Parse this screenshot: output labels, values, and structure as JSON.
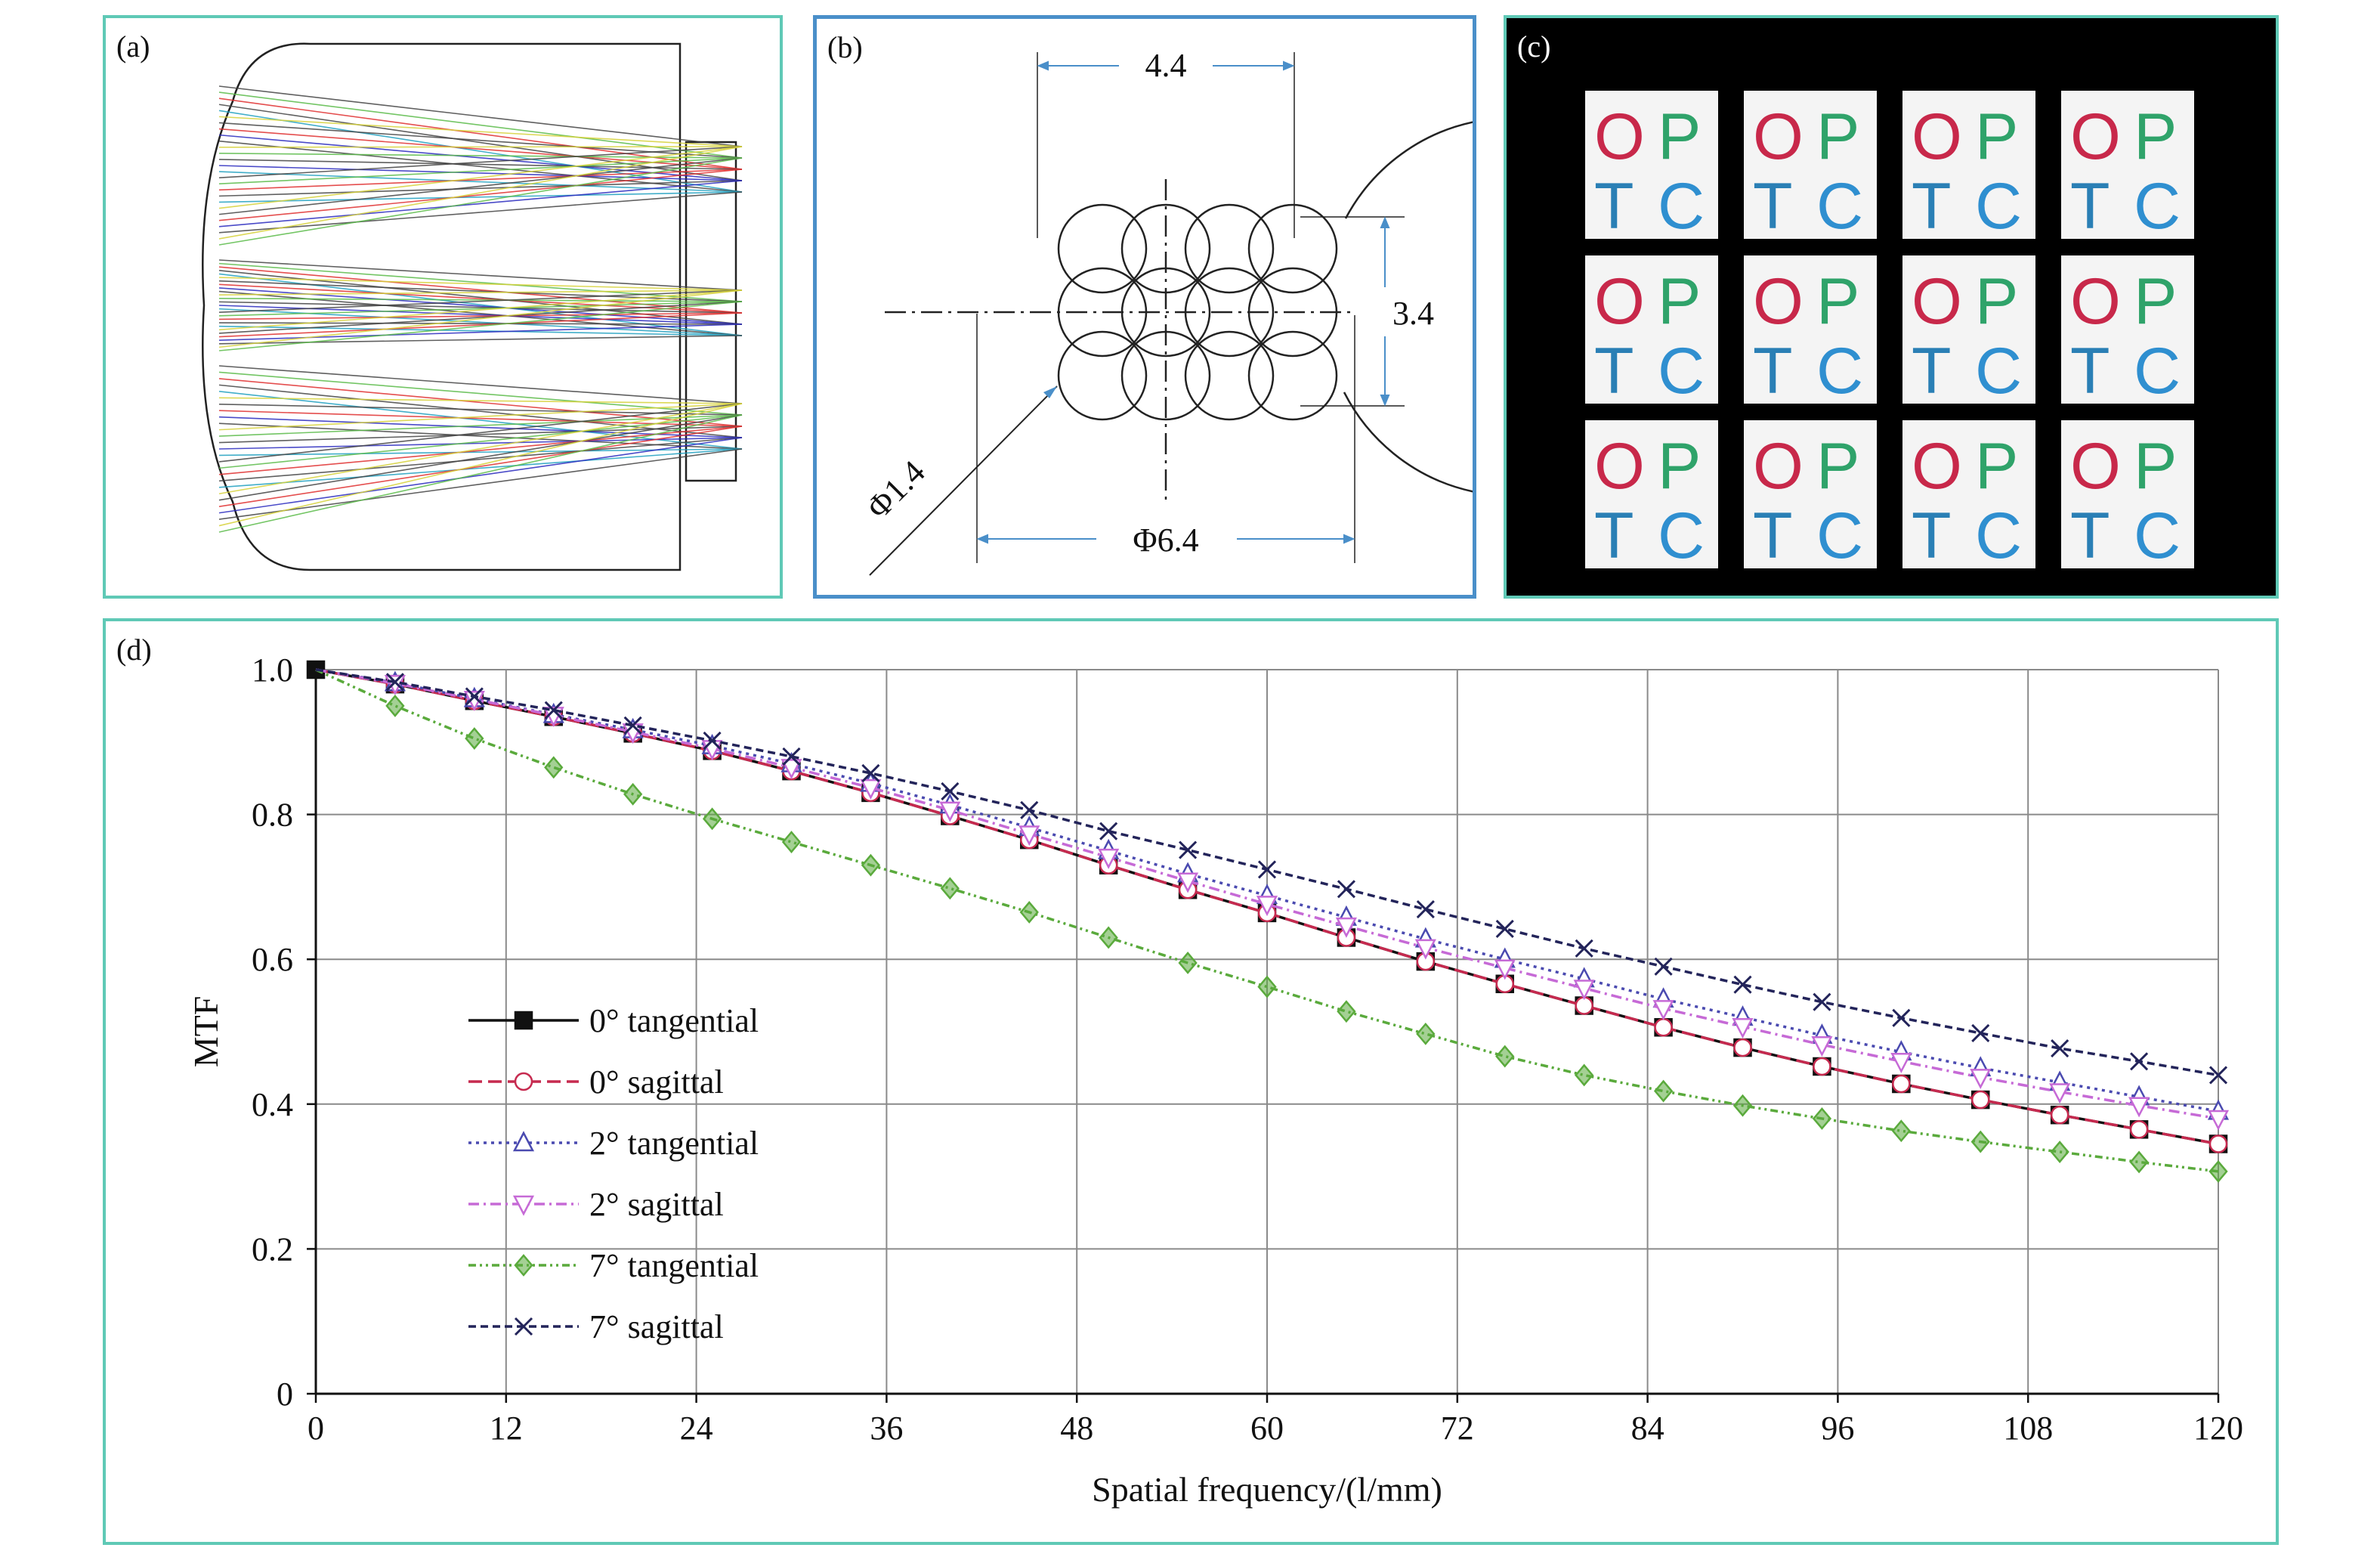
{
  "panels": {
    "a": {
      "label": "(a)"
    },
    "b": {
      "label": "(b)",
      "dim_width": "4.4",
      "dim_height": "3.4",
      "dim_lens": "Φ1.4",
      "dim_outer": "Φ6.4"
    },
    "c": {
      "label": "(c)",
      "letters": [
        "O",
        "P",
        "T",
        "C"
      ],
      "rows": 3,
      "cols": 4,
      "colors": {
        "O": "#c8284a",
        "P": "#2fa36a",
        "T": "#2a7fb5",
        "C": "#2f8fd0"
      }
    },
    "d": {
      "label": "(d)"
    }
  },
  "chart_data": {
    "type": "line",
    "title": "",
    "xlabel": "Spatial frequency/(l/mm)",
    "ylabel": "MTF",
    "xlim": [
      0,
      120
    ],
    "ylim": [
      0,
      1.0
    ],
    "xticks": [
      "0",
      "12",
      "24",
      "36",
      "48",
      "60",
      "72",
      "84",
      "96",
      "108",
      "120"
    ],
    "yticks": [
      "0",
      "0.2",
      "0.4",
      "0.6",
      "0.8",
      "1.0"
    ],
    "grid": true,
    "legend_position": "middle-left",
    "x": [
      0,
      5,
      10,
      15,
      20,
      25,
      30,
      35,
      40,
      45,
      50,
      55,
      60,
      65,
      70,
      75,
      80,
      85,
      90,
      95,
      100,
      105,
      110,
      115,
      120
    ],
    "series": [
      {
        "name": "0° tangential",
        "color": "#111111",
        "dash": "",
        "marker": "square",
        "values": [
          1.0,
          0.98,
          0.957,
          0.935,
          0.912,
          0.888,
          0.86,
          0.83,
          0.798,
          0.765,
          0.73,
          0.696,
          0.664,
          0.63,
          0.597,
          0.566,
          0.536,
          0.506,
          0.478,
          0.452,
          0.428,
          0.406,
          0.385,
          0.365,
          0.345
        ]
      },
      {
        "name": "0° sagittal",
        "color": "#c62a4f",
        "dash": "18,8",
        "marker": "circle",
        "values": [
          1.0,
          0.98,
          0.957,
          0.935,
          0.912,
          0.888,
          0.86,
          0.83,
          0.798,
          0.765,
          0.73,
          0.696,
          0.664,
          0.63,
          0.597,
          0.566,
          0.536,
          0.506,
          0.478,
          0.452,
          0.428,
          0.406,
          0.385,
          0.365,
          0.345
        ]
      },
      {
        "name": "2° tangential",
        "color": "#4a4ab0",
        "dash": "4,6",
        "marker": "triangle-up",
        "values": [
          1.0,
          0.982,
          0.96,
          0.938,
          0.917,
          0.895,
          0.87,
          0.843,
          0.813,
          0.782,
          0.75,
          0.718,
          0.688,
          0.658,
          0.628,
          0.6,
          0.573,
          0.545,
          0.52,
          0.495,
          0.472,
          0.45,
          0.43,
          0.41,
          0.39
        ]
      },
      {
        "name": "2° sagittal",
        "color": "#c66ad6",
        "dash": "14,6,3,6",
        "marker": "triangle-down",
        "values": [
          1.0,
          0.981,
          0.959,
          0.937,
          0.914,
          0.891,
          0.865,
          0.837,
          0.806,
          0.773,
          0.741,
          0.708,
          0.676,
          0.646,
          0.616,
          0.588,
          0.56,
          0.532,
          0.507,
          0.482,
          0.459,
          0.437,
          0.417,
          0.398,
          0.38
        ]
      },
      {
        "name": "7° tangential",
        "color": "#5aaa3c",
        "dash": "10,5,3,5,3,5",
        "marker": "diamond",
        "values": [
          1.0,
          0.95,
          0.905,
          0.865,
          0.828,
          0.794,
          0.762,
          0.73,
          0.698,
          0.665,
          0.63,
          0.595,
          0.562,
          0.528,
          0.497,
          0.466,
          0.44,
          0.418,
          0.398,
          0.38,
          0.363,
          0.348,
          0.334,
          0.32,
          0.307
        ]
      },
      {
        "name": "7° sagittal",
        "color": "#23245a",
        "dash": "10,6",
        "marker": "x",
        "values": [
          1.0,
          0.983,
          0.963,
          0.944,
          0.923,
          0.902,
          0.88,
          0.857,
          0.832,
          0.806,
          0.777,
          0.751,
          0.724,
          0.697,
          0.669,
          0.642,
          0.615,
          0.59,
          0.565,
          0.541,
          0.519,
          0.498,
          0.477,
          0.459,
          0.44
        ]
      }
    ]
  }
}
